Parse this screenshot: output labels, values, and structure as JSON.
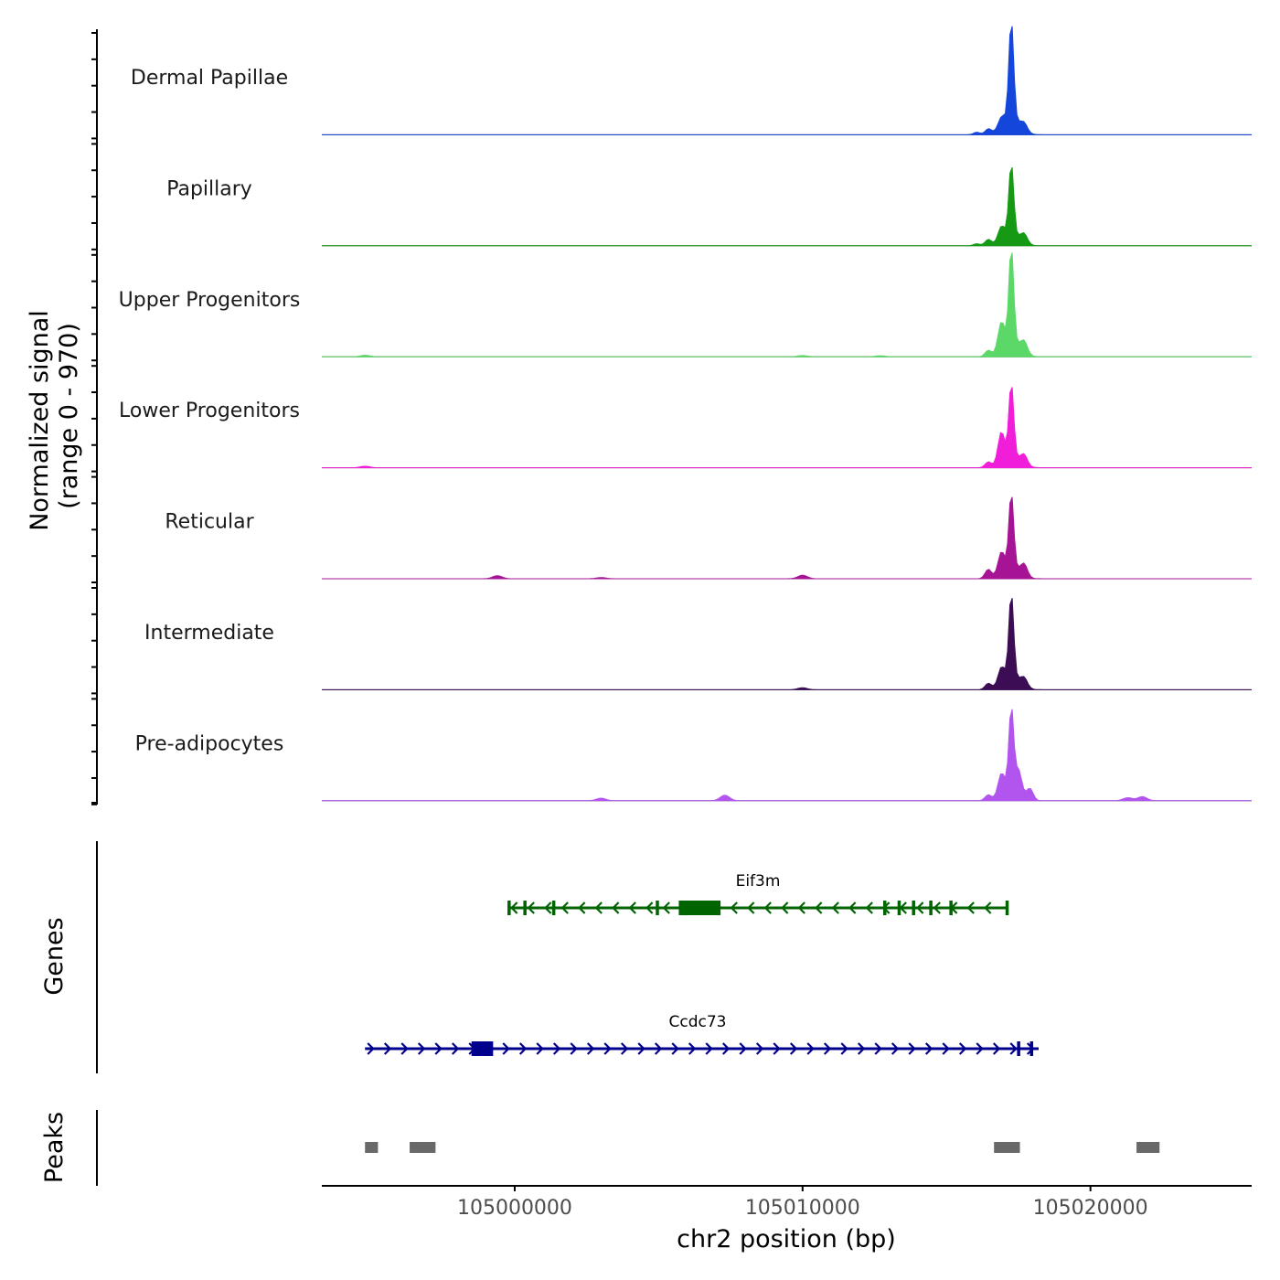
{
  "chart_data": {
    "type": "coverage-track",
    "region": {
      "chrom": "chr2",
      "start": 104993300,
      "end": 105025600
    },
    "signal": {
      "ylabel_line1": "Normalized signal",
      "ylabel_line2": "(range 0 - 970)",
      "ymax": 970,
      "peak_summit_bp": 105017250,
      "tracks": [
        {
          "name": "Dermal Papillae",
          "color": "#1446DC",
          "summit": 970,
          "minor": [
            {
              "bp": 105016450,
              "h": 55
            },
            {
              "bp": 105016900,
              "h": 90
            },
            {
              "bp": 105017700,
              "h": 70
            },
            {
              "bp": 105016050,
              "h": 25
            }
          ],
          "bg": []
        },
        {
          "name": "Papillary",
          "color": "#169A16",
          "summit": 700,
          "minor": [
            {
              "bp": 105016450,
              "h": 60
            },
            {
              "bp": 105016900,
              "h": 130
            },
            {
              "bp": 105017700,
              "h": 85
            },
            {
              "bp": 105016050,
              "h": 20
            }
          ],
          "bg": []
        },
        {
          "name": "Upper Progenitors",
          "color": "#5CD868",
          "summit": 930,
          "minor": [
            {
              "bp": 105016450,
              "h": 60
            },
            {
              "bp": 105016900,
              "h": 260
            },
            {
              "bp": 105017700,
              "h": 110
            },
            {
              "bp": 104994800,
              "h": 15
            },
            {
              "bp": 105010000,
              "h": 12
            },
            {
              "bp": 105012700,
              "h": 10
            }
          ],
          "bg": []
        },
        {
          "name": "Lower Progenitors",
          "color": "#F01ED8",
          "summit": 720,
          "minor": [
            {
              "bp": 105016450,
              "h": 55
            },
            {
              "bp": 105016900,
              "h": 290
            },
            {
              "bp": 105017700,
              "h": 95
            },
            {
              "bp": 104994800,
              "h": 15
            }
          ],
          "bg": []
        },
        {
          "name": "Reticular",
          "color": "#A61495",
          "summit": 730,
          "minor": [
            {
              "bp": 105016450,
              "h": 90
            },
            {
              "bp": 105016900,
              "h": 200
            },
            {
              "bp": 105017700,
              "h": 110
            },
            {
              "bp": 104999400,
              "h": 30
            },
            {
              "bp": 105010000,
              "h": 35
            },
            {
              "bp": 105003000,
              "h": 12
            }
          ],
          "bg": []
        },
        {
          "name": "Intermediate",
          "color": "#3C0C55",
          "summit": 820,
          "minor": [
            {
              "bp": 105016450,
              "h": 60
            },
            {
              "bp": 105016900,
              "h": 150
            },
            {
              "bp": 105017700,
              "h": 80
            },
            {
              "bp": 105010000,
              "h": 20
            }
          ],
          "bg": []
        },
        {
          "name": "Pre-adipocytes",
          "color": "#B255EE",
          "summit": 790,
          "minor": [
            {
              "bp": 105016450,
              "h": 55
            },
            {
              "bp": 105016900,
              "h": 200
            },
            {
              "bp": 105017500,
              "h": 210
            },
            {
              "bp": 105017900,
              "h": 110
            },
            {
              "bp": 105007300,
              "h": 55
            },
            {
              "bp": 105003000,
              "h": 25
            },
            {
              "bp": 105021800,
              "h": 40
            },
            {
              "bp": 105021300,
              "h": 30
            }
          ],
          "bg": []
        }
      ]
    },
    "genes": {
      "ylabel": "Genes",
      "items": [
        {
          "name": "Eif3m",
          "color": "#006400",
          "strand": "-",
          "start": 104999800,
          "end": 105017150,
          "cds_start": 104995650,
          "exons": [
            [
              104999750,
              104999900
            ],
            [
              105000300,
              105000380
            ],
            [
              105001300,
              105001450
            ],
            [
              105004900,
              105004980
            ],
            [
              105005700,
              105007150
            ],
            [
              105012800,
              105012880
            ],
            [
              105013300,
              105013420
            ],
            [
              105013800,
              105013920
            ],
            [
              105014400,
              105014480
            ],
            [
              105015100,
              105015200
            ],
            [
              105017050,
              105017180
            ]
          ],
          "thick": [
            [
              105005700,
              105007150
            ]
          ]
        },
        {
          "name": "Ccdc73",
          "color": "#00008C",
          "strand": "+",
          "start": 104994800,
          "end": 105018200,
          "exons": [
            [
              104998500,
              104999250
            ],
            [
              105017450,
              105017520
            ],
            [
              105017900,
              105018150
            ]
          ],
          "thick": [
            [
              104998500,
              104999250
            ],
            [
              105017950,
              105018150
            ]
          ]
        }
      ]
    },
    "peaks": {
      "ylabel": "Peaks",
      "color": "#696969",
      "intervals": [
        [
          104994800,
          104995250
        ],
        [
          104996350,
          104997250
        ],
        [
          105016650,
          105017550
        ],
        [
          105021600,
          105022400
        ]
      ]
    },
    "xaxis": {
      "label": "chr2 position (bp)",
      "ticks": [
        105000000,
        105010000,
        105020000
      ],
      "tick_labels": [
        "105000000",
        "105010000",
        "105020000"
      ]
    }
  }
}
